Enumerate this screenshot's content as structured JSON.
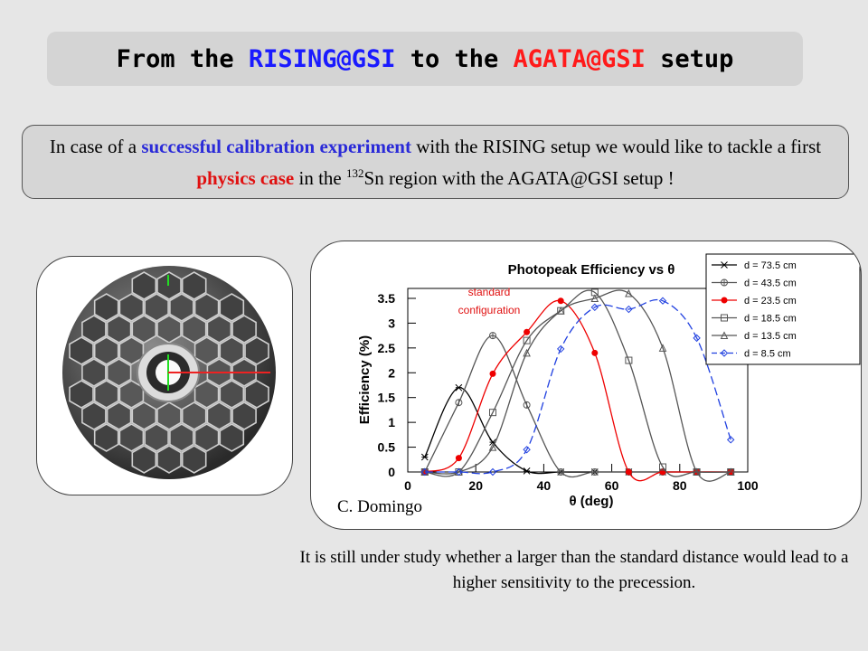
{
  "title": {
    "part1": "From the ",
    "rising": "RISING@GSI",
    "part2": " to the ",
    "agata": "AGATA@GSI",
    "part3": " setup"
  },
  "intro": {
    "t1": "In case of a ",
    "b1": "successful calibration experiment",
    "t2": " with the RISING setup we would like to tackle a first ",
    "b2": "physics case",
    "t3": " in the ",
    "sup": "132",
    "t4": "Sn region with the AGATA@GSI setup !"
  },
  "credit": "C. Domingo",
  "footer": "It is still under study whether a larger than the standard distance would lead to a higher sensitivity to the precession.",
  "annotation": "standard configuration",
  "colors": {
    "blue": "#1a1aff",
    "red": "#ff1a1a",
    "dashed_blue": "#2040e0"
  },
  "chart_data": {
    "type": "line",
    "title": "Photopeak Efficiency vs θ",
    "xlabel": "θ (deg)",
    "ylabel": "Efficiency (%)",
    "xlim": [
      0,
      100
    ],
    "ylim": [
      0,
      3.7
    ],
    "x_ticks": [
      "0",
      "20",
      "40",
      "60",
      "80",
      "100"
    ],
    "y_ticks": [
      "0",
      "0.5",
      "1",
      "1.5",
      "2",
      "2.5",
      "3",
      "3.5"
    ],
    "legend_position": "top-right",
    "series": [
      {
        "name": "d = 73.5 cm",
        "color": "#000000",
        "dash": false,
        "marker": "star",
        "x": [
          5,
          15,
          25,
          35,
          45,
          55,
          65,
          75,
          85,
          95
        ],
        "y": [
          0.3,
          1.7,
          0.6,
          0.02,
          0.0,
          0.0,
          0.0,
          0.0,
          0.0,
          0.0
        ]
      },
      {
        "name": "d = 43.5 cm",
        "color": "#555555",
        "dash": false,
        "marker": "circle-cross",
        "x": [
          5,
          15,
          25,
          35,
          45,
          55,
          65,
          75,
          85,
          95
        ],
        "y": [
          0.0,
          1.4,
          2.75,
          1.35,
          0.0,
          0.0,
          0.0,
          0.0,
          0.0,
          0.0
        ]
      },
      {
        "name": "d = 23.5 cm",
        "color": "#ee0000",
        "dash": false,
        "marker": "filled-circle",
        "x": [
          5,
          15,
          25,
          35,
          45,
          55,
          65,
          75,
          85,
          95
        ],
        "y": [
          0.0,
          0.28,
          1.98,
          2.82,
          3.45,
          2.4,
          0.0,
          0.0,
          0.0,
          0.0
        ]
      },
      {
        "name": "d = 18.5 cm",
        "color": "#555555",
        "dash": false,
        "marker": "square",
        "x": [
          5,
          15,
          25,
          35,
          45,
          55,
          65,
          75,
          85,
          95
        ],
        "y": [
          0.0,
          0.0,
          1.2,
          2.65,
          3.25,
          3.62,
          2.25,
          0.1,
          0.0,
          0.0
        ]
      },
      {
        "name": "d = 13.5 cm",
        "color": "#555555",
        "dash": false,
        "marker": "triangle",
        "x": [
          5,
          15,
          25,
          35,
          45,
          55,
          65,
          75,
          85,
          95
        ],
        "y": [
          0.0,
          0.0,
          0.5,
          2.4,
          3.25,
          3.5,
          3.6,
          2.5,
          0.0,
          0.0
        ]
      },
      {
        "name": "d = 8.5 cm",
        "color": "#2040e0",
        "dash": true,
        "marker": "diamond",
        "x": [
          5,
          15,
          25,
          35,
          45,
          55,
          65,
          75,
          85,
          95
        ],
        "y": [
          0.0,
          0.0,
          0.0,
          0.45,
          2.48,
          3.32,
          3.28,
          3.45,
          2.7,
          0.65
        ]
      }
    ]
  }
}
